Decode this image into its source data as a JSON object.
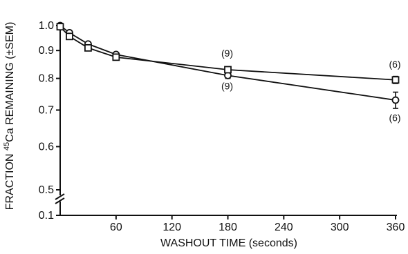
{
  "chart_data": {
    "type": "line",
    "title": "",
    "xlabel": "WASHOUT TIME (seconds)",
    "ylabel_prefix": "FRACTION ",
    "ylabel_sup": "45",
    "ylabel_suffix": "Ca REMAINING (±SEM)",
    "y_scale": "log",
    "y_axis_break": true,
    "x_ticks": [
      60,
      120,
      180,
      240,
      300,
      360
    ],
    "y_ticks": [
      {
        "value": 1.0,
        "label": "1.0"
      },
      {
        "value": 0.9,
        "label": "0.9"
      },
      {
        "value": 0.8,
        "label": "0.8"
      },
      {
        "value": 0.7,
        "label": "0.7"
      },
      {
        "value": 0.6,
        "label": "0.6"
      },
      {
        "value": 0.5,
        "label": "0.5"
      },
      {
        "value": 0.1,
        "label": "0.1"
      }
    ],
    "series": [
      {
        "marker": "circle",
        "x": [
          0,
          10,
          30,
          60,
          180,
          360
        ],
        "y": [
          1.0,
          0.97,
          0.925,
          0.885,
          0.81,
          0.73
        ],
        "err": [
          0,
          0,
          0,
          0,
          0.01,
          0.025
        ]
      },
      {
        "marker": "square",
        "x": [
          0,
          10,
          30,
          60,
          180,
          360
        ],
        "y": [
          0.995,
          0.955,
          0.91,
          0.875,
          0.83,
          0.795
        ],
        "err": [
          0,
          0,
          0,
          0,
          0.008,
          0.012
        ]
      }
    ],
    "annotations": [
      {
        "text": "(9)",
        "x": 180,
        "y": 0.89
      },
      {
        "text": "(9)",
        "x": 180,
        "y": 0.775
      },
      {
        "text": "(6)",
        "x": 360,
        "y": 0.85
      },
      {
        "text": "(6)",
        "x": 360,
        "y": 0.678
      }
    ]
  }
}
